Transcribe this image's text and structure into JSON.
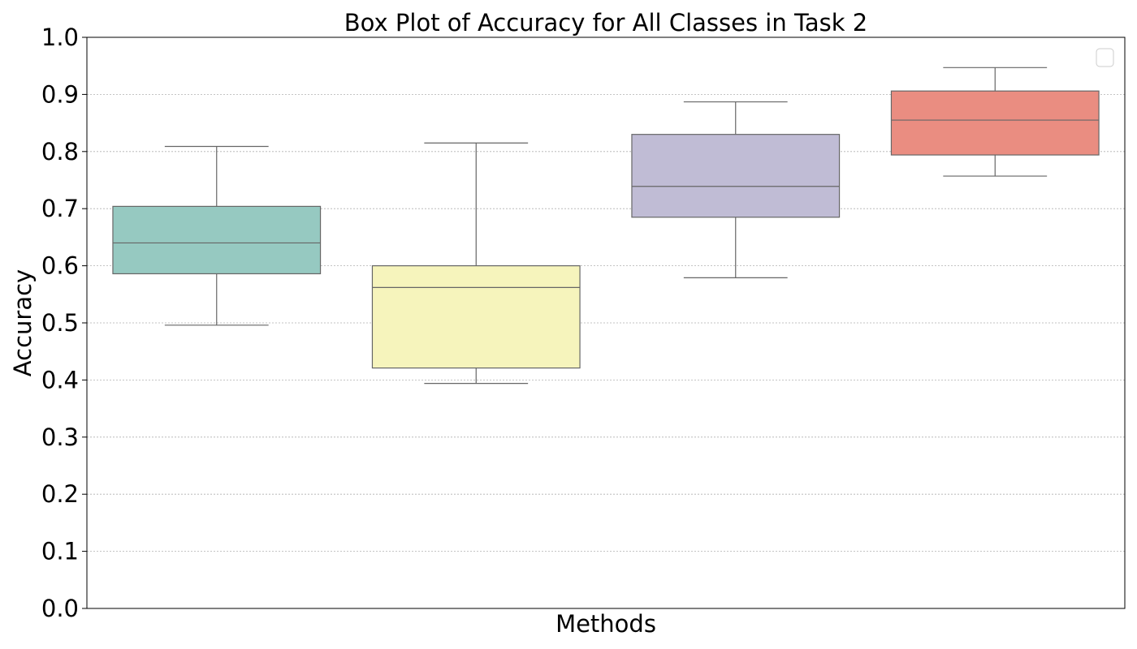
{
  "chart_data": {
    "type": "box",
    "title": "Box Plot of Accuracy for All Classes in Task 2",
    "xlabel": "Methods",
    "ylabel": "Accuracy",
    "ylim": [
      0.0,
      1.0
    ],
    "yticks": [
      "0.0",
      "0.1",
      "0.2",
      "0.3",
      "0.4",
      "0.5",
      "0.6",
      "0.7",
      "0.8",
      "0.9",
      "1.0"
    ],
    "grid": "y-dotted",
    "legend": "top-right-empty",
    "boxes": [
      {
        "whisker_low": 0.496,
        "q1": 0.586,
        "median": 0.64,
        "q3": 0.704,
        "whisker_high": 0.809,
        "color": "#96c9c1"
      },
      {
        "whisker_low": 0.394,
        "q1": 0.421,
        "median": 0.562,
        "q3": 0.6,
        "whisker_high": 0.815,
        "color": "#f6f4bc"
      },
      {
        "whisker_low": 0.579,
        "q1": 0.685,
        "median": 0.739,
        "q3": 0.83,
        "whisker_high": 0.887,
        "color": "#c0bcd5"
      },
      {
        "whisker_low": 0.757,
        "q1": 0.794,
        "median": 0.855,
        "q3": 0.906,
        "whisker_high": 0.947,
        "color": "#ea8d81"
      }
    ]
  }
}
